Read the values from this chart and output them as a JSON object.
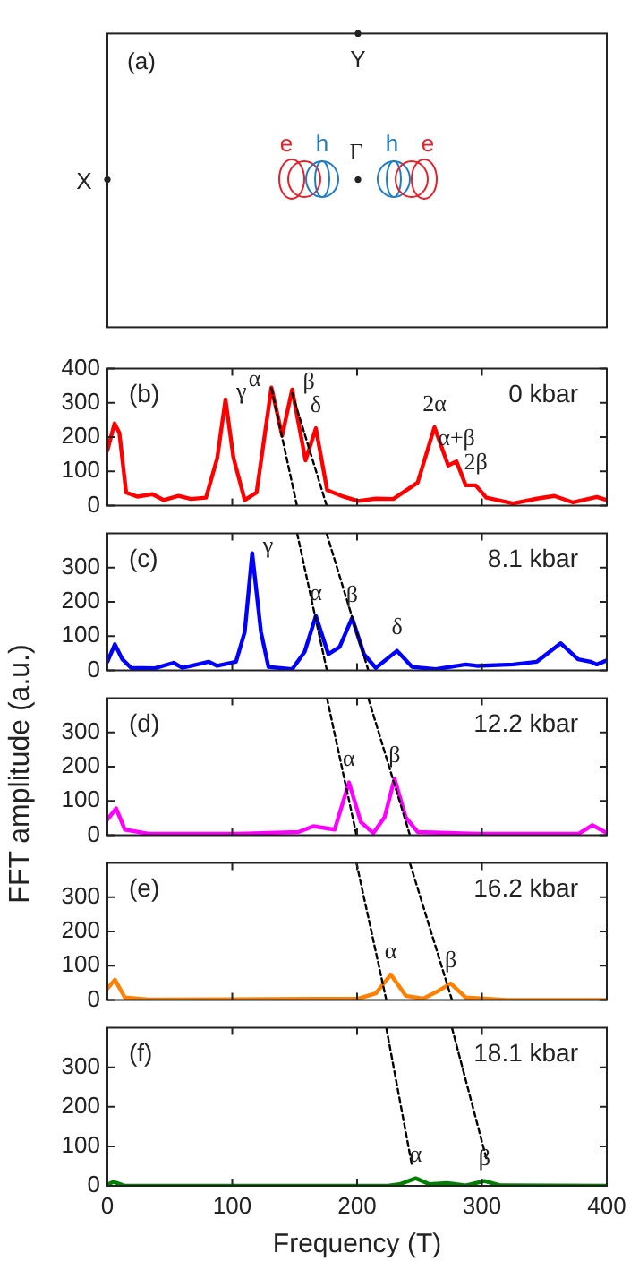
{
  "chart_data": [
    {
      "type": "other",
      "annotations": [
        "(a)",
        "Y",
        "X",
        "Γ",
        "e",
        "h",
        "h",
        "e"
      ]
    },
    {
      "type": "line",
      "marker": "none",
      "legend": false,
      "grid": false,
      "tick_labels": "y",
      "xlim": [
        0,
        400
      ],
      "xticks": [
        0,
        100,
        200,
        300,
        400
      ],
      "ylim": [
        0,
        400
      ],
      "yticks": [
        0,
        100,
        200,
        300,
        400
      ],
      "annotations": [
        "(b)",
        "0 kbar",
        {
          "text": "γ",
          "x": 94.6,
          "y": 310
        },
        {
          "text": "α",
          "x": 131.4,
          "y": 345
        },
        {
          "text": "β",
          "x": 148,
          "y": 339
        },
        {
          "text": "δ",
          "x": 167,
          "y": 226
        },
        {
          "text": "2α",
          "x": 262,
          "y": 229
        },
        {
          "text": "α+β",
          "x": 279.6,
          "y": 129
        },
        {
          "text": "2β",
          "x": 295,
          "y": 59
        }
      ],
      "series": [
        {
          "color": "#ff0000",
          "x": [
            0,
            5.7,
            9.6,
            15,
            24,
            36,
            45,
            57,
            67,
            79,
            88,
            94.6,
            101,
            110,
            119.5,
            131.4,
            140,
            148,
            158.7,
            167,
            176,
            189,
            200.7,
            215,
            229,
            248.5,
            262,
            273,
            279.6,
            287,
            295,
            303.5,
            325,
            344,
            358,
            373,
            392,
            400
          ],
          "values": [
            161,
            240,
            212,
            38,
            26,
            33,
            16,
            28,
            19,
            23,
            139,
            310,
            139,
            16,
            38,
            345,
            204,
            339,
            132,
            226,
            45,
            26,
            13,
            20,
            19,
            67,
            229,
            117,
            129,
            59,
            59,
            23,
            6,
            20,
            28,
            9,
            25,
            16
          ]
        },
        {
          "type": "line",
          "line_style": "dashed",
          "color": "#000000",
          "x": [
            131.5,
            151.8
          ],
          "values": [
            342,
            0
          ]
        },
        {
          "type": "line",
          "line_style": "dashed",
          "color": "#000000",
          "x": [
            148,
            175.6
          ],
          "values": [
            328,
            0
          ]
        }
      ]
    },
    {
      "type": "line",
      "marker": "none",
      "legend": false,
      "grid": false,
      "tick_labels": "y",
      "xlim": [
        0,
        400
      ],
      "xticks": [
        0,
        100,
        200,
        300,
        400
      ],
      "ylim": [
        0,
        400
      ],
      "yticks": [
        0,
        100,
        200,
        300
      ],
      "annotations": [
        "(c)",
        "8.1 kbar",
        {
          "text": "γ",
          "x": 116,
          "y": 342
        },
        {
          "text": "α",
          "x": 167,
          "y": 159
        },
        {
          "text": "β",
          "x": 196,
          "y": 153
        },
        {
          "text": "δ",
          "x": 232,
          "y": 57
        }
      ],
      "series": [
        {
          "color": "#0000ff",
          "x": [
            0,
            6,
            12,
            19,
            38,
            53,
            60,
            72,
            81,
            88,
            103,
            110,
            116,
            123,
            129,
            148,
            158,
            167,
            177,
            186,
            196,
            205.5,
            215,
            232,
            244,
            263,
            287,
            296,
            325,
            344,
            363,
            377,
            387,
            392,
            400
          ],
          "values": [
            25,
            76,
            32,
            7,
            6,
            22,
            7,
            17,
            25,
            13,
            25,
            112,
            342,
            112,
            10,
            3,
            54,
            159,
            47,
            68,
            153,
            47,
            7,
            57,
            10,
            3,
            17,
            13,
            17,
            25,
            79,
            32,
            25,
            17,
            29
          ]
        },
        {
          "type": "line",
          "line_style": "dashed",
          "color": "#000000",
          "x": [
            152,
            175.8
          ],
          "values": [
            400,
            0
          ]
        },
        {
          "type": "line",
          "line_style": "dashed",
          "color": "#000000",
          "x": [
            175.6,
            209
          ],
          "values": [
            400,
            0
          ]
        }
      ]
    },
    {
      "type": "line",
      "marker": "none",
      "legend": false,
      "grid": false,
      "tick_labels": "y",
      "xlim": [
        0,
        400
      ],
      "xticks": [
        0,
        100,
        200,
        300,
        400
      ],
      "ylim": [
        0,
        400
      ],
      "yticks": [
        0,
        100,
        200,
        300
      ],
      "ylabel": "FFT amplitude (a.u.)",
      "annotations": [
        "(d)",
        "12.2 kbar",
        {
          "text": "α",
          "x": 193.5,
          "y": 154
        },
        {
          "text": "β",
          "x": 230,
          "y": 165
        }
      ],
      "series": [
        {
          "color": "#ff00ff",
          "x": [
            0,
            7,
            14,
            33,
            105,
            153,
            165,
            182,
            193.5,
            203,
            213,
            222,
            230,
            239,
            248.5,
            296,
            377.5,
            388.5,
            400
          ],
          "values": [
            45,
            78,
            16,
            4,
            4,
            9,
            26,
            16,
            154,
            38,
            6,
            52,
            165,
            52,
            9,
            4,
            4,
            29,
            6
          ]
        },
        {
          "type": "line",
          "line_style": "dashed",
          "color": "#000000",
          "x": [
            175.9,
            199.5
          ],
          "values": [
            400,
            0
          ]
        },
        {
          "type": "line",
          "line_style": "dashed",
          "color": "#000000",
          "x": [
            209,
            242.3
          ],
          "values": [
            400,
            0
          ]
        }
      ]
    },
    {
      "type": "line",
      "marker": "none",
      "legend": false,
      "grid": false,
      "tick_labels": "y",
      "xlim": [
        0,
        400
      ],
      "xticks": [
        0,
        100,
        200,
        300,
        400
      ],
      "ylim": [
        0,
        400
      ],
      "yticks": [
        0,
        100,
        200,
        300
      ],
      "annotations": [
        "(e)",
        "16.2 kbar",
        {
          "text": "α",
          "x": 227,
          "y": 74
        },
        {
          "text": "β",
          "x": 275,
          "y": 48
        }
      ],
      "series": [
        {
          "color": "#ff8000",
          "x": [
            0,
            6,
            14,
            33,
            201,
            215,
            227,
            239,
            253,
            265,
            275,
            287,
            320,
            400
          ],
          "values": [
            33,
            59,
            7,
            1,
            4,
            19,
            74,
            12,
            4,
            26,
            48,
            7,
            0,
            0
          ]
        },
        {
          "type": "line",
          "line_style": "dashed",
          "color": "#000000",
          "x": [
            199.5,
            223.4
          ],
          "values": [
            400,
            0
          ]
        },
        {
          "type": "line",
          "line_style": "dashed",
          "color": "#000000",
          "x": [
            242.3,
            276
          ],
          "values": [
            400,
            0
          ]
        }
      ]
    },
    {
      "type": "line",
      "marker": "none",
      "legend": false,
      "grid": false,
      "xlim": [
        0,
        400
      ],
      "xticks": [
        0,
        100,
        200,
        300,
        400
      ],
      "ylim": [
        0,
        400
      ],
      "yticks": [
        0,
        100,
        200,
        300
      ],
      "xlabel": "Frequency (T)",
      "annotations": [
        "(f)",
        "18.1 kbar",
        {
          "text": "α",
          "x": 247,
          "y": 19
        },
        {
          "text": "β",
          "x": 302,
          "y": 12
        }
      ],
      "series": [
        {
          "color": "#008000",
          "x": [
            0,
            5,
            14,
            225,
            234,
            247,
            258,
            272,
            287,
            302,
            315,
            400
          ],
          "values": [
            3,
            10,
            0,
            0,
            4,
            19,
            4,
            7,
            1,
            12,
            1,
            0
          ]
        },
        {
          "type": "line",
          "line_style": "dashed",
          "color": "#000000",
          "x": [
            223.4,
            243.7
          ],
          "values": [
            400,
            56
          ]
        },
        {
          "type": "line",
          "line_style": "dashed",
          "color": "#000000",
          "x": [
            276,
            303.5
          ],
          "values": [
            400,
            70
          ]
        }
      ]
    }
  ]
}
